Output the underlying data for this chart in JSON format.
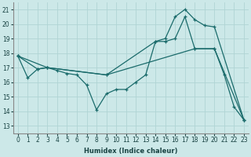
{
  "xlabel": "Humidex (Indice chaleur)",
  "bg_color": "#cce8e8",
  "grid_color": "#b0d4d4",
  "line_color": "#1a6b6b",
  "xlim": [
    -0.5,
    23.5
  ],
  "ylim": [
    12.5,
    21.5
  ],
  "yticks": [
    13,
    14,
    15,
    16,
    17,
    18,
    19,
    20,
    21
  ],
  "xticks": [
    0,
    1,
    2,
    3,
    4,
    5,
    6,
    7,
    8,
    9,
    10,
    11,
    12,
    13,
    14,
    15,
    16,
    17,
    18,
    19,
    20,
    21,
    22,
    23
  ],
  "line1_x": [
    0,
    1,
    2,
    3,
    4,
    5,
    6,
    7,
    8,
    9,
    10,
    11,
    12,
    13,
    14,
    15,
    16,
    17,
    18,
    20,
    21,
    22,
    23
  ],
  "line1_y": [
    17.8,
    16.3,
    16.9,
    17.0,
    16.8,
    16.6,
    16.5,
    15.8,
    14.1,
    15.2,
    15.5,
    15.5,
    16.0,
    16.5,
    18.8,
    18.8,
    19.0,
    20.5,
    18.3,
    18.3,
    16.5,
    14.3,
    13.4
  ],
  "line2_x": [
    0,
    2,
    3,
    9,
    14,
    15,
    16,
    17,
    18,
    19,
    20,
    23
  ],
  "line2_y": [
    17.8,
    16.9,
    17.0,
    16.5,
    18.8,
    19.0,
    20.5,
    21.0,
    20.3,
    19.9,
    19.8,
    13.4
  ],
  "line3_x": [
    0,
    3,
    9,
    18,
    20,
    23
  ],
  "line3_y": [
    17.8,
    17.0,
    16.5,
    18.3,
    18.3,
    13.4
  ],
  "figsize": [
    3.2,
    2.0
  ],
  "dpi": 100
}
